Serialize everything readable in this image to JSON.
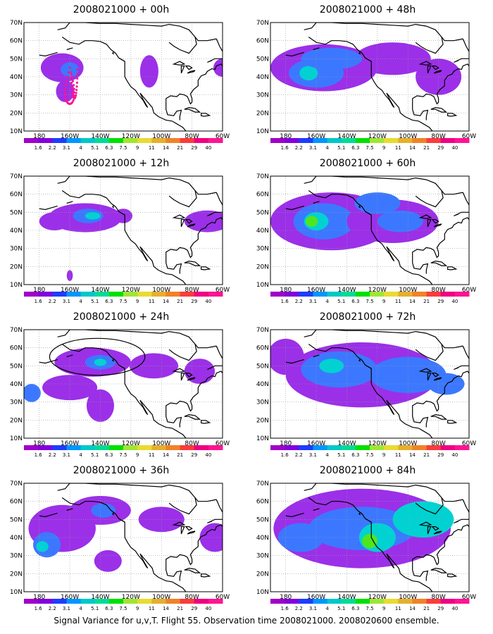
{
  "panels": [
    {
      "title": "2008021000 + 00h",
      "blobs": [
        [
          -165,
          45,
          14,
          8,
          1
        ],
        [
          -160,
          44,
          6,
          4,
          2
        ],
        [
          -163,
          32,
          6,
          6,
          1
        ],
        [
          -108,
          43,
          6,
          9,
          1
        ],
        [
          -60,
          45,
          6,
          5,
          1
        ]
      ],
      "track": true,
      "circle": false
    },
    {
      "title": "2008021000 + 12h",
      "blobs": [
        [
          -150,
          47,
          24,
          8,
          1
        ],
        [
          -148,
          48,
          10,
          4,
          2
        ],
        [
          -145,
          48,
          5,
          2,
          3
        ],
        [
          -170,
          45,
          10,
          5,
          1
        ],
        [
          -125,
          48,
          6,
          4,
          1
        ],
        [
          -70,
          45,
          15,
          6,
          1
        ],
        [
          -160,
          15,
          2,
          3,
          1
        ]
      ],
      "track": false,
      "circle": false
    },
    {
      "title": "2008021000 + 24h",
      "blobs": [
        [
          -145,
          52,
          25,
          8,
          1
        ],
        [
          -140,
          52,
          10,
          4,
          2
        ],
        [
          -140,
          52,
          4,
          2,
          3
        ],
        [
          -160,
          38,
          18,
          7,
          1
        ],
        [
          -140,
          28,
          9,
          9,
          1
        ],
        [
          -105,
          50,
          16,
          7,
          1
        ],
        [
          -75,
          47,
          10,
          7,
          1
        ],
        [
          -185,
          35,
          6,
          5,
          2
        ]
      ],
      "track": false,
      "circle": true
    },
    {
      "title": "2008021000 + 36h",
      "blobs": [
        [
          -165,
          45,
          22,
          13,
          1
        ],
        [
          -175,
          36,
          9,
          7,
          2
        ],
        [
          -178,
          35,
          4,
          3,
          3
        ],
        [
          -140,
          55,
          20,
          8,
          1
        ],
        [
          -138,
          55,
          8,
          4,
          2
        ],
        [
          -135,
          27,
          9,
          6,
          1
        ],
        [
          -100,
          50,
          15,
          7,
          1
        ],
        [
          -65,
          40,
          10,
          8,
          1
        ]
      ],
      "track": false,
      "circle": false
    },
    {
      "title": "2008021000 + 48h",
      "blobs": [
        [
          -155,
          45,
          35,
          13,
          1
        ],
        [
          -160,
          42,
          18,
          8,
          2
        ],
        [
          -165,
          42,
          6,
          4,
          3
        ],
        [
          -110,
          50,
          25,
          9,
          1
        ],
        [
          -150,
          50,
          20,
          6,
          2
        ],
        [
          -80,
          40,
          15,
          10,
          1
        ]
      ],
      "track": false,
      "circle": false
    },
    {
      "title": "2008021000 + 60h",
      "blobs": [
        [
          -150,
          45,
          40,
          16,
          1
        ],
        [
          -155,
          45,
          20,
          10,
          2
        ],
        [
          -160,
          45,
          8,
          5,
          3
        ],
        [
          -163,
          45,
          4,
          3,
          4
        ],
        [
          -110,
          45,
          30,
          12,
          1
        ],
        [
          -105,
          45,
          15,
          6,
          2
        ],
        [
          -120,
          55,
          15,
          6,
          2
        ]
      ],
      "track": false,
      "circle": false
    },
    {
      "title": "2008021000 + 72h",
      "blobs": [
        [
          -130,
          45,
          50,
          18,
          1
        ],
        [
          -145,
          48,
          25,
          10,
          2
        ],
        [
          -150,
          50,
          8,
          4,
          3
        ],
        [
          -100,
          45,
          25,
          10,
          2
        ],
        [
          -75,
          40,
          12,
          6,
          2
        ],
        [
          -180,
          55,
          12,
          10,
          1
        ]
      ],
      "track": false,
      "circle": false
    },
    {
      "title": "2008021000 + 84h",
      "blobs": [
        [
          -130,
          45,
          58,
          22,
          1
        ],
        [
          -130,
          45,
          35,
          12,
          2
        ],
        [
          -120,
          40,
          12,
          8,
          3
        ],
        [
          -125,
          38,
          5,
          4,
          4
        ],
        [
          -90,
          50,
          20,
          10,
          3
        ],
        [
          -170,
          40,
          15,
          8,
          2
        ]
      ],
      "track": false,
      "circle": false
    }
  ],
  "axes": {
    "lat_labels": [
      "10N",
      "20N",
      "30N",
      "40N",
      "50N",
      "60N",
      "70N"
    ],
    "lon_labels": [
      "180",
      "160W",
      "140W",
      "120W",
      "100W",
      "80W",
      "60W"
    ]
  },
  "colorbar": {
    "labels": [
      "1.6",
      "2.2",
      "3.1",
      "4",
      "5.1",
      "6.3",
      "7.5",
      "9",
      "11",
      "14",
      "21",
      "29",
      "40"
    ],
    "colors": [
      "#a000c8",
      "#8200dc",
      "#1e3cff",
      "#0096ff",
      "#00c8c8",
      "#00dc96",
      "#00e000",
      "#a0e632",
      "#e6dc32",
      "#e6af2d",
      "#f08228",
      "#fa3c3c",
      "#f00082",
      "#ff1493"
    ]
  },
  "level_colors": [
    "#9b30e8",
    "#3c78ff",
    "#00d2d2",
    "#50e61e",
    "#e6e61e"
  ],
  "caption": "Signal Variance for u,v,T. Flight 55. Observation time 2008021000. 2008020600 ensemble."
}
